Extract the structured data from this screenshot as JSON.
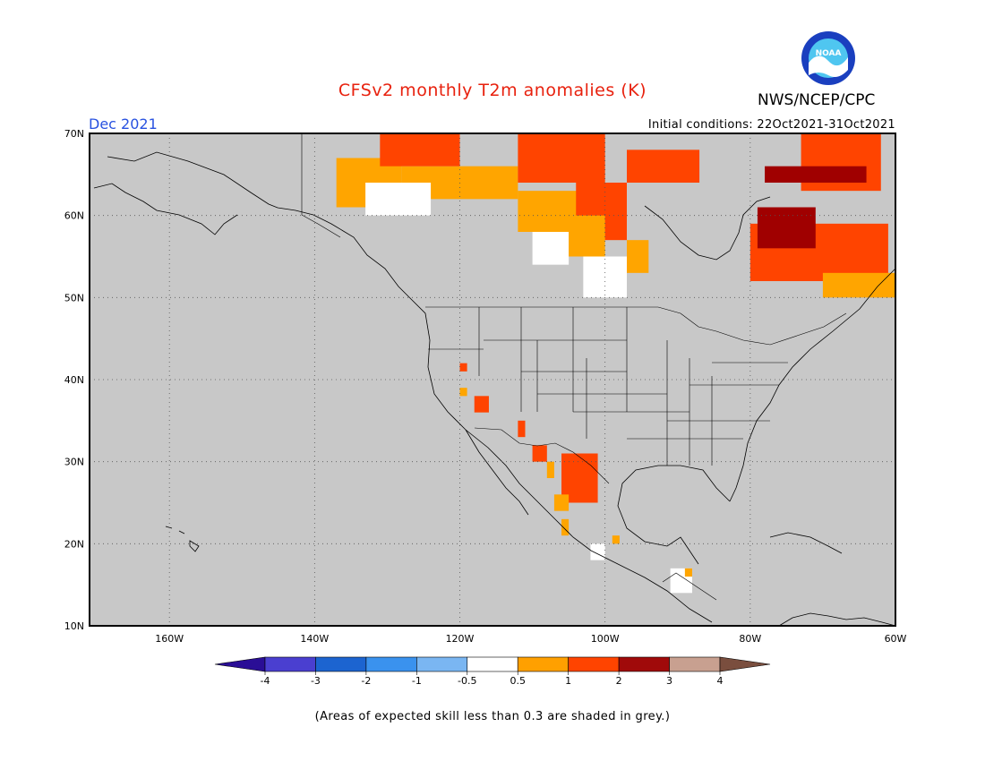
{
  "header": {
    "title": "CFSv2 monthly T2m anomalies (K)",
    "agency": "NWS/NCEP/CPC",
    "period": "Dec 2021",
    "initial_conditions": "Initial conditions: 22Oct2021-31Oct2021",
    "logo_text": "NOAA"
  },
  "map": {
    "lon_range": [
      -171,
      -60
    ],
    "lat_range": [
      10,
      70
    ],
    "background_color": "#c8c8c8",
    "lat_ticks": [
      {
        "value": 70,
        "label": "70N"
      },
      {
        "value": 60,
        "label": "60N"
      },
      {
        "value": 50,
        "label": "50N"
      },
      {
        "value": 40,
        "label": "40N"
      },
      {
        "value": 30,
        "label": "30N"
      },
      {
        "value": 20,
        "label": "20N"
      },
      {
        "value": 10,
        "label": "10N"
      }
    ],
    "lon_ticks": [
      {
        "value": -160,
        "label": "160W"
      },
      {
        "value": -140,
        "label": "140W"
      },
      {
        "value": -120,
        "label": "120W"
      },
      {
        "value": -100,
        "label": "100W"
      },
      {
        "value": -80,
        "label": "80W"
      },
      {
        "value": -60,
        "label": "60W"
      }
    ],
    "anomaly_regions": [
      {
        "category": "0.5 to 1",
        "color": "#ffa500",
        "bounds": {
          "lon": [
            -137,
            -128
          ],
          "lat": [
            61,
            67
          ]
        }
      },
      {
        "category": "0.5 to 1",
        "color": "#ffa500",
        "bounds": {
          "lon": [
            -128,
            -112
          ],
          "lat": [
            62,
            66
          ]
        }
      },
      {
        "category": "-0.5 to 0.5",
        "color": "#ffffff",
        "bounds": {
          "lon": [
            -133,
            -124
          ],
          "lat": [
            60,
            64
          ]
        }
      },
      {
        "category": "-0.5 to 0.5",
        "color": "#ffffff",
        "bounds": {
          "lon": [
            -110,
            -105
          ],
          "lat": [
            54,
            59
          ]
        }
      },
      {
        "category": "-0.5 to 0.5",
        "color": "#ffffff",
        "bounds": {
          "lon": [
            -103,
            -97
          ],
          "lat": [
            50,
            55
          ]
        }
      },
      {
        "category": "0.5 to 1",
        "color": "#ffa500",
        "bounds": {
          "lon": [
            -112,
            -103
          ],
          "lat": [
            58,
            63
          ]
        }
      },
      {
        "category": "1 to 2",
        "color": "#ff4400",
        "bounds": {
          "lon": [
            -131,
            -120
          ],
          "lat": [
            66,
            70
          ]
        }
      },
      {
        "category": "1 to 2",
        "color": "#ff4400",
        "bounds": {
          "lon": [
            -112,
            -100
          ],
          "lat": [
            64,
            70
          ]
        }
      },
      {
        "category": "1 to 2",
        "color": "#ff4400",
        "bounds": {
          "lon": [
            -104,
            -97
          ],
          "lat": [
            57,
            64
          ]
        }
      },
      {
        "category": "1 to 2",
        "color": "#ff4400",
        "bounds": {
          "lon": [
            -97,
            -87
          ],
          "lat": [
            64,
            68
          ]
        }
      },
      {
        "category": "0.5 to 1",
        "color": "#ffa500",
        "bounds": {
          "lon": [
            -105,
            -100
          ],
          "lat": [
            55,
            60
          ]
        }
      },
      {
        "category": "0.5 to 1",
        "color": "#ffa500",
        "bounds": {
          "lon": [
            -97,
            -94
          ],
          "lat": [
            53,
            57
          ]
        }
      },
      {
        "category": "1 to 2",
        "color": "#ff4400",
        "bounds": {
          "lon": [
            -80,
            -61
          ],
          "lat": [
            52,
            59
          ]
        }
      },
      {
        "category": "1 to 2",
        "color": "#ff4400",
        "bounds": {
          "lon": [
            -73,
            -62
          ],
          "lat": [
            63,
            70
          ]
        }
      },
      {
        "category": "2 to 3",
        "color": "#a00000",
        "bounds": {
          "lon": [
            -79,
            -71
          ],
          "lat": [
            56,
            61
          ]
        }
      },
      {
        "category": "2 to 3",
        "color": "#a00000",
        "bounds": {
          "lon": [
            -78,
            -64
          ],
          "lat": [
            64,
            66
          ]
        }
      },
      {
        "category": "0.5 to 1",
        "color": "#ffa500",
        "bounds": {
          "lon": [
            -70,
            -60
          ],
          "lat": [
            50,
            53
          ]
        }
      },
      {
        "category": "1 to 2",
        "color": "#ff4400",
        "bounds": {
          "lon": [
            -106,
            -101
          ],
          "lat": [
            25,
            31
          ]
        }
      },
      {
        "category": "0.5 to 1",
        "color": "#ffa500",
        "bounds": {
          "lon": [
            -107,
            -105
          ],
          "lat": [
            24,
            26
          ]
        }
      },
      {
        "category": "1 to 2",
        "color": "#ff4400",
        "bounds": {
          "lon": [
            -110,
            -108
          ],
          "lat": [
            30,
            32
          ]
        }
      },
      {
        "category": "1 to 2",
        "color": "#ff4400",
        "bounds": {
          "lon": [
            -112,
            -111
          ],
          "lat": [
            33,
            35
          ]
        }
      },
      {
        "category": "1 to 2",
        "color": "#ff4400",
        "bounds": {
          "lon": [
            -118,
            -116
          ],
          "lat": [
            36,
            38
          ]
        }
      },
      {
        "category": "1 to 2",
        "color": "#ff4400",
        "bounds": {
          "lon": [
            -120,
            -119
          ],
          "lat": [
            41,
            42
          ]
        }
      },
      {
        "category": "0.5 to 1",
        "color": "#ffa500",
        "bounds": {
          "lon": [
            -120,
            -119
          ],
          "lat": [
            38,
            39
          ]
        }
      },
      {
        "category": "0.5 to 1",
        "color": "#ffa500",
        "bounds": {
          "lon": [
            -108,
            -107
          ],
          "lat": [
            28,
            30
          ]
        }
      },
      {
        "category": "0.5 to 1",
        "color": "#ffa500",
        "bounds": {
          "lon": [
            -106,
            -105
          ],
          "lat": [
            21,
            23
          ]
        }
      },
      {
        "category": "-0.5 to 0.5",
        "color": "#ffffff",
        "bounds": {
          "lon": [
            -102,
            -100
          ],
          "lat": [
            18,
            20
          ]
        }
      },
      {
        "category": "0.5 to 1",
        "color": "#ffa500",
        "bounds": {
          "lon": [
            -99,
            -98
          ],
          "lat": [
            20,
            21
          ]
        }
      },
      {
        "category": "-0.5 to 0.5",
        "color": "#ffffff",
        "bounds": {
          "lon": [
            -91,
            -88
          ],
          "lat": [
            14,
            17
          ]
        }
      },
      {
        "category": "0.5 to 1",
        "color": "#ffa500",
        "bounds": {
          "lon": [
            -89,
            -88
          ],
          "lat": [
            16,
            17
          ]
        }
      }
    ]
  },
  "colorbar": {
    "bins": [
      {
        "color": "#2a0e96"
      },
      {
        "color": "#4a3fd0"
      },
      {
        "color": "#1c64d0"
      },
      {
        "color": "#3a92ee"
      },
      {
        "color": "#7ab6f2"
      },
      {
        "color": "#ffffff"
      },
      {
        "color": "#ffa000"
      },
      {
        "color": "#ff4400"
      },
      {
        "color": "#a00a0a"
      },
      {
        "color": "#c8a090"
      },
      {
        "color": "#7a4e3e"
      }
    ],
    "labels": [
      "-4",
      "-3",
      "-2",
      "-1",
      "-0.5",
      "0.5",
      "1",
      "2",
      "3",
      "4"
    ]
  },
  "footer": {
    "note": "(Areas of expected skill less than 0.3 are shaded in grey.)"
  }
}
